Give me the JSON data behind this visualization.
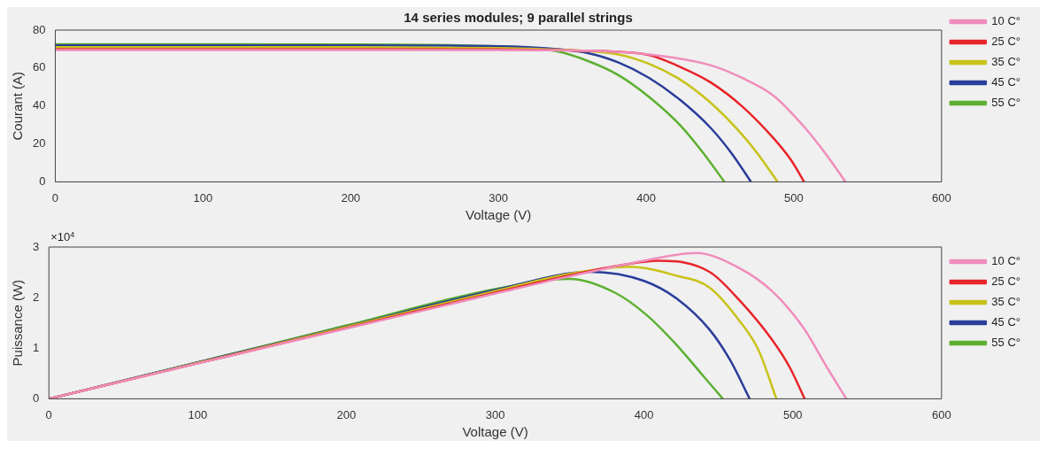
{
  "chart_data": [
    {
      "type": "line",
      "title": "14 series modules; 9 parallel strings",
      "xlabel": "Voltage (V)",
      "ylabel": "Courant (A)",
      "xlim": [
        0,
        600
      ],
      "xticks": [
        0,
        100,
        200,
        300,
        400,
        500,
        600
      ],
      "ylim": [
        0,
        80
      ],
      "yticks": [
        0,
        20,
        40,
        60,
        80
      ],
      "grid": false,
      "legend": "top right",
      "series": [
        {
          "name": "10 C°",
          "color": "#f08cbc",
          "x": [
            0,
            100,
            200,
            300,
            350,
            402,
            444,
            465,
            486,
            507,
            523,
            535
          ],
          "values": [
            69.5,
            69.5,
            69.5,
            69.5,
            69.3,
            67.2,
            61.4,
            54.8,
            45.6,
            29,
            13.3,
            0
          ]
        },
        {
          "name": "25 C°",
          "color": "#e8242a",
          "x": [
            0,
            100,
            200,
            300,
            350,
            400,
            423,
            444,
            465,
            486,
            498,
            507
          ],
          "values": [
            70,
            70,
            70,
            69.8,
            69.3,
            67.2,
            60.6,
            52.3,
            39.8,
            23.2,
            11.6,
            0
          ]
        },
        {
          "name": "35 C°",
          "color": "#c8c21a",
          "x": [
            0,
            100,
            200,
            300,
            330,
            381,
            402,
            423,
            444,
            465,
            477,
            489
          ],
          "values": [
            71,
            71,
            71,
            70.5,
            70,
            67.2,
            62.2,
            53.9,
            41.5,
            24.9,
            13.3,
            0
          ]
        },
        {
          "name": "45 C°",
          "color": "#2a3d9a",
          "x": [
            0,
            100,
            200,
            300,
            320,
            360,
            381,
            402,
            423,
            444,
            458,
            471
          ],
          "values": [
            72,
            72,
            72,
            71.5,
            71,
            68,
            63,
            54.8,
            43.2,
            28.2,
            14.9,
            0
          ]
        },
        {
          "name": "55 C°",
          "color": "#5cb030",
          "x": [
            0,
            100,
            200,
            280,
            339,
            360,
            381,
            402,
            423,
            439,
            453
          ],
          "values": [
            72.5,
            72.5,
            72.4,
            71.8,
            68.9,
            63.9,
            56.4,
            44.8,
            29.9,
            14.9,
            0
          ]
        }
      ]
    },
    {
      "type": "line",
      "xlabel": "Voltage (V)",
      "ylabel": "Puissance (W)",
      "annotations": [
        "×10$^{4}$"
      ],
      "xlim": [
        0,
        600
      ],
      "xticks": [
        0,
        100,
        200,
        300,
        400,
        500,
        600
      ],
      "ylim": [
        0,
        3
      ],
      "yticks": [
        0,
        1,
        2,
        3
      ],
      "grid": false,
      "legend": "top right",
      "series": [
        {
          "name": "10 C°",
          "color": "#f08cbc",
          "x": [
            0,
            100,
            200,
            300,
            350,
            400,
            435,
            465,
            486,
            507,
            523,
            536
          ],
          "values": [
            0,
            0.7,
            1.39,
            2.08,
            2.42,
            2.73,
            2.88,
            2.57,
            2.13,
            1.41,
            0.62,
            0
          ]
        },
        {
          "name": "25 C°",
          "color": "#e8242a",
          "x": [
            0,
            100,
            200,
            300,
            350,
            380,
            410,
            444,
            465,
            486,
            498,
            508
          ],
          "values": [
            0,
            0.7,
            1.4,
            2.1,
            2.44,
            2.62,
            2.73,
            2.51,
            1.92,
            1.17,
            0.62,
            0
          ]
        },
        {
          "name": "35 C°",
          "color": "#c8c21a",
          "x": [
            0,
            100,
            200,
            300,
            350,
            390,
            421,
            444,
            465,
            477,
            489
          ],
          "values": [
            0,
            0.71,
            1.42,
            2.13,
            2.47,
            2.61,
            2.44,
            2.2,
            1.51,
            0.96,
            0
          ]
        },
        {
          "name": "45 C°",
          "color": "#2a3d9a",
          "x": [
            0,
            100,
            200,
            300,
            364,
            400,
            423,
            444,
            458,
            471
          ],
          "values": [
            0,
            0.72,
            1.43,
            2.15,
            2.51,
            2.33,
            1.96,
            1.37,
            0.76,
            0
          ]
        },
        {
          "name": "55 C°",
          "color": "#5cb030",
          "x": [
            0,
            100,
            200,
            300,
            350,
            381,
            402,
            423,
            439,
            453
          ],
          "values": [
            0,
            0.72,
            1.45,
            2.17,
            2.37,
            2.09,
            1.65,
            1.03,
            0.48,
            0
          ]
        }
      ]
    }
  ]
}
